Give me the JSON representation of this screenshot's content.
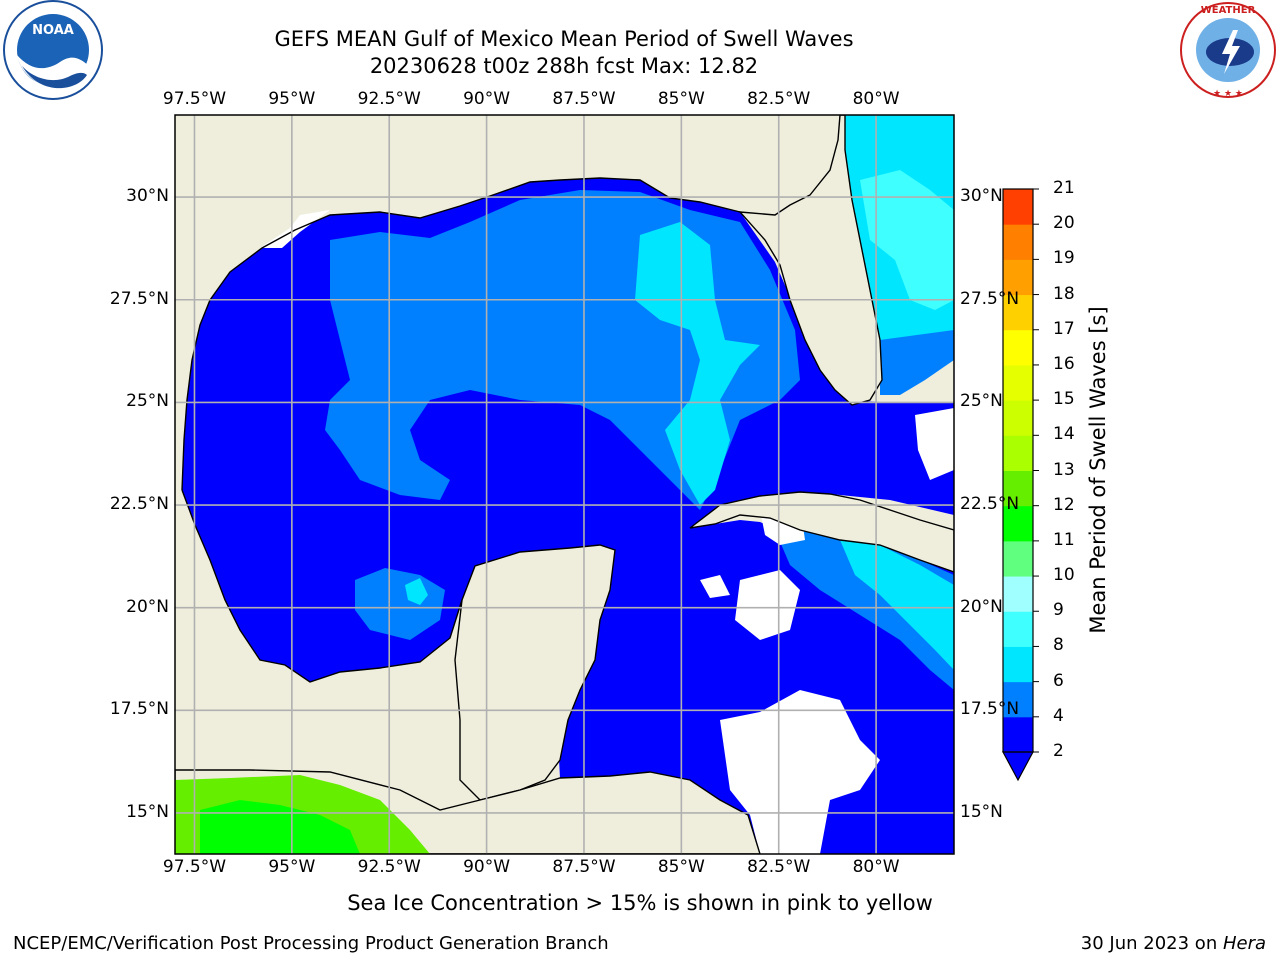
{
  "title_line1": "GEFS MEAN Gulf of Mexico Mean Period of Swell Waves",
  "title_line2": "20230628 t00z 288h fcst   Max: 12.82",
  "subtitle": "Sea Ice Concentration > 15% is shown in pink to yellow",
  "credit": "NCEP/EMC/Verification Post Processing Product Generation Branch",
  "date_text": "30 Jun 2023 on ",
  "date_machine": "Hera",
  "logos": {
    "left": "NOAA",
    "right": "NATIONAL WEATHER SERVICE"
  },
  "map": {
    "lon_range": [
      -98.0,
      -78.0
    ],
    "lat_range": [
      14.0,
      32.0
    ],
    "lon_ticks": [
      {
        "value": -97.5,
        "label": "97.5°W"
      },
      {
        "value": -95,
        "label": "95°W"
      },
      {
        "value": -92.5,
        "label": "92.5°W"
      },
      {
        "value": -90,
        "label": "90°W"
      },
      {
        "value": -87.5,
        "label": "87.5°W"
      },
      {
        "value": -85,
        "label": "85°W"
      },
      {
        "value": -82.5,
        "label": "82.5°W"
      },
      {
        "value": -80,
        "label": "80°W"
      }
    ],
    "lat_ticks": [
      {
        "value": 30,
        "label": "30°N"
      },
      {
        "value": 27.5,
        "label": "27.5°N"
      },
      {
        "value": 25,
        "label": "25°N"
      },
      {
        "value": 22.5,
        "label": "22.5°N"
      },
      {
        "value": 20,
        "label": "20°N"
      },
      {
        "value": 17.5,
        "label": "17.5°N"
      },
      {
        "value": 15,
        "label": "15°N"
      }
    ],
    "right_lat_labels": [
      "30°N",
      "27.5°N",
      "25°N",
      "22.5°N",
      "20°N",
      "17.5°N",
      "15°N"
    ],
    "colors": {
      "land": "#efeedd",
      "grid": "#b0b0b0"
    }
  },
  "colorbar": {
    "label": "Mean Period of Swell Waves [s]",
    "ticks": [
      "2",
      "4",
      "6",
      "8",
      "9",
      "10",
      "11",
      "12",
      "13",
      "14",
      "15",
      "16",
      "17",
      "18",
      "19",
      "20",
      "21"
    ],
    "colors": [
      "#0000ff",
      "#0080ff",
      "#00e6ff",
      "#40ffff",
      "#a0ffff",
      "#60ff80",
      "#00ff00",
      "#66ee00",
      "#aaff00",
      "#ccff00",
      "#e6ff00",
      "#ffff00",
      "#ffd000",
      "#ffa000",
      "#ff8000",
      "#ff4000",
      "#ff0000"
    ],
    "under_color": "#0000ff"
  },
  "chart_data": {
    "type": "heatmap",
    "title": "GEFS MEAN Gulf of Mexico Mean Period of Swell Waves",
    "variable": "Mean Period of Swell Waves [s]",
    "max": 12.82,
    "region": "Gulf of Mexico",
    "levels": [
      2,
      4,
      6,
      8,
      9,
      10,
      11,
      12,
      13,
      14,
      15,
      16,
      17,
      18,
      19,
      20,
      21
    ]
  }
}
